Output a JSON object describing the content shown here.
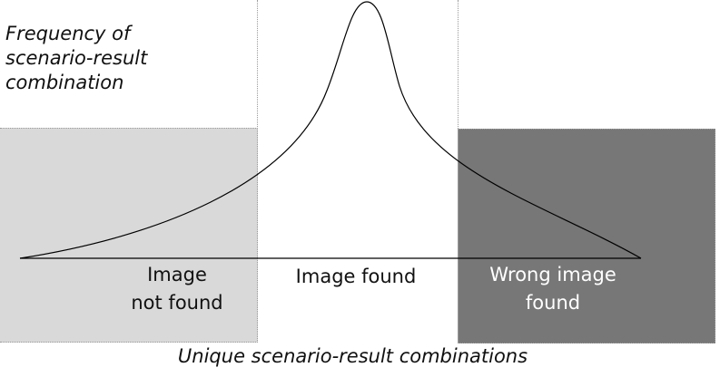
{
  "diagram": {
    "y_axis_label_lines": [
      "Frequency of",
      "scenario-result",
      "combination"
    ],
    "x_axis_label": "Unique scenario-result combinations",
    "zones": [
      {
        "lines": [
          "Image",
          "not found"
        ]
      },
      {
        "lines": [
          "Image found"
        ]
      },
      {
        "lines": [
          "Wrong image",
          "found"
        ]
      }
    ]
  },
  "colors": {
    "left_zone_fill": "#d9d9d9",
    "right_zone_fill": "#777777",
    "curve": "#000000",
    "zone_divider": "#9a9a9a"
  }
}
